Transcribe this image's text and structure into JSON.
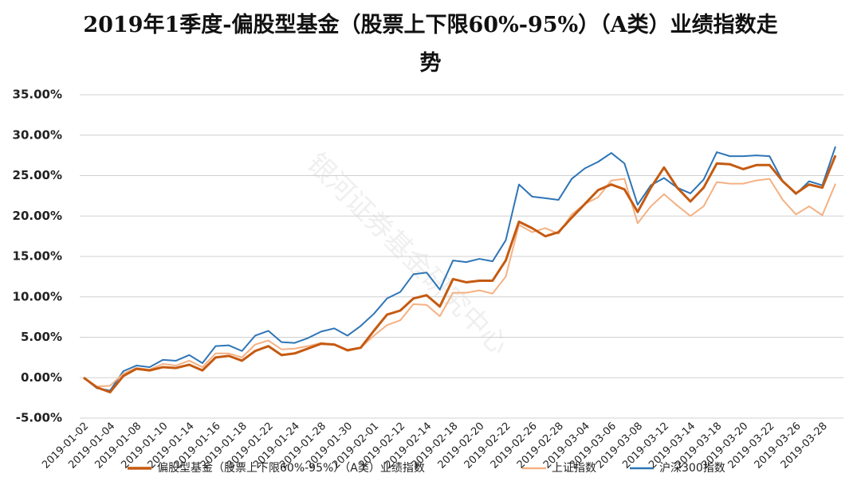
{
  "chart_data": {
    "type": "line",
    "title": "2019年1季度-偏股型基金（股票上下限60%-95%）（A类）业绩指数走势",
    "watermark": "银河证券基金研究中心",
    "categories": [
      "2019-01-02",
      null,
      "2019-01-04",
      null,
      "2019-01-08",
      null,
      "2019-01-10",
      null,
      "2019-01-14",
      null,
      "2019-01-16",
      null,
      "2019-01-18",
      null,
      "2019-01-22",
      null,
      "2019-01-24",
      null,
      "2019-01-28",
      null,
      "2019-01-30",
      null,
      "2019-02-01",
      null,
      "2019-02-12",
      null,
      "2019-02-14",
      null,
      "2019-02-18",
      null,
      "2019-02-20",
      null,
      "2019-02-22",
      null,
      "2019-02-26",
      null,
      "2019-02-28",
      null,
      "2019-03-04",
      null,
      "2019-03-06",
      null,
      "2019-03-08",
      null,
      "2019-03-12",
      null,
      "2019-03-14",
      null,
      "2019-03-18",
      null,
      "2019-03-20",
      null,
      "2019-03-22",
      null,
      "2019-03-26",
      null,
      "2019-03-28",
      null
    ],
    "series": [
      {
        "name": "偏股型基金（股票上下限60%-95%）（A类）业绩指数",
        "color": "#c55a11",
        "width": 3,
        "values": [
          0,
          -1.2,
          -1.8,
          0.2,
          1.1,
          0.9,
          1.3,
          1.2,
          1.6,
          0.9,
          2.5,
          2.7,
          2.1,
          3.3,
          3.9,
          2.8,
          3.0,
          3.6,
          4.2,
          4.1,
          3.4,
          3.7,
          5.8,
          7.8,
          8.3,
          9.8,
          10.2,
          8.8,
          12.2,
          11.8,
          12.0,
          12.0,
          14.5,
          19.3,
          18.5,
          17.5,
          18.0,
          19.8,
          21.5,
          23.2,
          23.9,
          23.3,
          20.5,
          23.5,
          26.0,
          23.5,
          21.8,
          23.5,
          26.5,
          26.4,
          25.8,
          26.3,
          26.3,
          24.3,
          22.8,
          23.9,
          23.5,
          27.5
        ]
      },
      {
        "name": "上证指数",
        "color": "#f4b183",
        "width": 2,
        "values": [
          0,
          -1.1,
          -1.0,
          0.5,
          1.2,
          1.0,
          1.7,
          1.5,
          2.1,
          1.3,
          3.0,
          3.0,
          2.5,
          4.1,
          4.6,
          3.5,
          3.6,
          3.9,
          4.3,
          4.1,
          3.3,
          3.7,
          5.2,
          6.5,
          7.1,
          9.1,
          9.0,
          7.6,
          10.5,
          10.5,
          10.8,
          10.4,
          12.5,
          18.9,
          18.0,
          18.5,
          17.8,
          20.2,
          21.5,
          22.3,
          24.4,
          24.6,
          19.1,
          21.2,
          22.7,
          21.3,
          20.0,
          21.2,
          24.2,
          24.0,
          24.0,
          24.4,
          24.6,
          22.0,
          20.2,
          21.2,
          20.1,
          24.0
        ]
      },
      {
        "name": "沪深300指数",
        "color": "#2e75b6",
        "width": 2,
        "values": [
          0,
          -1.3,
          -1.6,
          0.8,
          1.5,
          1.3,
          2.2,
          2.1,
          2.8,
          1.8,
          3.9,
          4.0,
          3.3,
          5.2,
          5.8,
          4.4,
          4.3,
          4.9,
          5.7,
          6.1,
          5.2,
          6.4,
          7.9,
          9.8,
          10.6,
          12.8,
          13.0,
          10.9,
          14.5,
          14.3,
          14.7,
          14.4,
          17.0,
          23.9,
          22.4,
          22.2,
          22.0,
          24.6,
          25.9,
          26.7,
          27.8,
          26.5,
          21.4,
          23.8,
          24.7,
          23.5,
          22.8,
          24.5,
          27.9,
          27.4,
          27.4,
          27.5,
          27.4,
          24.3,
          22.7,
          24.3,
          23.8,
          28.6
        ]
      }
    ],
    "ylim": [
      -5,
      35
    ],
    "yticks": [
      {
        "value": -5,
        "label": "-5.00%"
      },
      {
        "value": 0,
        "label": "0.00%"
      },
      {
        "value": 5,
        "label": "5.00%"
      },
      {
        "value": 10,
        "label": "10.00%"
      },
      {
        "value": 15,
        "label": "15.00%"
      },
      {
        "value": 20,
        "label": "20.00%"
      },
      {
        "value": 25,
        "label": "25.00%"
      },
      {
        "value": 30,
        "label": "30.00%"
      },
      {
        "value": 35,
        "label": "35.00%"
      }
    ],
    "grid": true,
    "legend": "bottom"
  }
}
